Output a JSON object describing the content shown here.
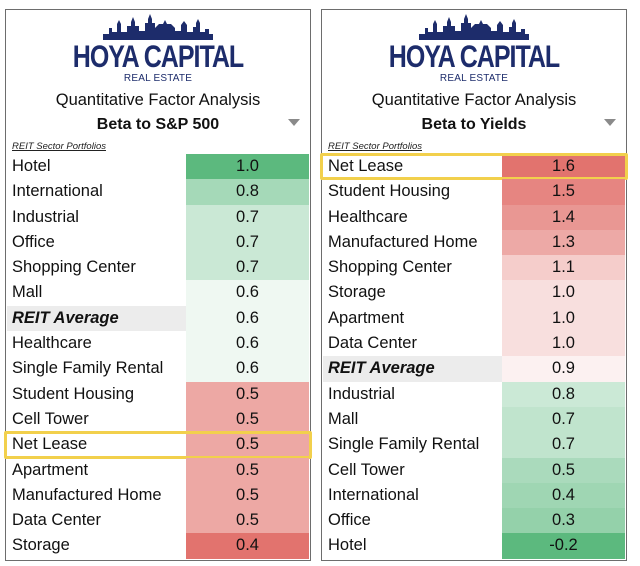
{
  "brand": {
    "name": "HOYA CAPITAL",
    "sub": "REAL ESTATE",
    "color": "#1d2c6b"
  },
  "colors": {
    "green": "#5cb97e",
    "red": "#e2736e",
    "highlight": "#f2d04c"
  },
  "chart_data": [
    {
      "type": "table",
      "subtitle": "Quantitative Factor Analysis",
      "title": "Beta to S&P 500",
      "section_label": "REIT Sector Portfolios",
      "categories": [
        "Hotel",
        "International",
        "Industrial",
        "Office",
        "Shopping Center",
        "Mall",
        "REIT Average",
        "Healthcare",
        "Single Family Rental",
        "Student Housing",
        "Cell Tower",
        "Net Lease",
        "Apartment",
        "Manufactured Home",
        "Data Center",
        "Storage"
      ],
      "values": [
        1.0,
        0.8,
        0.7,
        0.7,
        0.7,
        0.6,
        0.6,
        0.6,
        0.6,
        0.5,
        0.5,
        0.5,
        0.5,
        0.5,
        0.5,
        0.4
      ],
      "value_labels": [
        "1.0",
        "0.8",
        "0.7",
        "0.7",
        "0.7",
        "0.6",
        "0.6",
        "0.6",
        "0.6",
        "0.5",
        "0.5",
        "0.5",
        "0.5",
        "0.5",
        "0.5",
        "0.4"
      ],
      "average_index": 6,
      "highlighted_index": 11,
      "color_scale": {
        "high": "green",
        "low": "red",
        "mid": 0.6
      }
    },
    {
      "type": "table",
      "subtitle": "Quantitative Factor Analysis",
      "title": "Beta to Yields",
      "section_label": "REIT Sector Portfolios",
      "categories": [
        "Net Lease",
        "Student Housing",
        "Healthcare",
        "Manufactured Home",
        "Shopping Center",
        "Storage",
        "Apartment",
        "Data Center",
        "REIT Average",
        "Industrial",
        "Mall",
        "Single Family Rental",
        "Cell Tower",
        "International",
        "Office",
        "Hotel"
      ],
      "values": [
        1.6,
        1.5,
        1.4,
        1.3,
        1.1,
        1.0,
        1.0,
        1.0,
        0.9,
        0.8,
        0.7,
        0.7,
        0.5,
        0.4,
        0.3,
        -0.2
      ],
      "value_labels": [
        "1.6",
        "1.5",
        "1.4",
        "1.3",
        "1.1",
        "1.0",
        "1.0",
        "1.0",
        "0.9",
        "0.8",
        "0.7",
        "0.7",
        "0.5",
        "0.4",
        "0.3",
        "-0.2"
      ],
      "average_index": 8,
      "highlighted_index": 0,
      "color_scale": {
        "high": "red",
        "low": "green",
        "mid": 0.9
      }
    }
  ]
}
